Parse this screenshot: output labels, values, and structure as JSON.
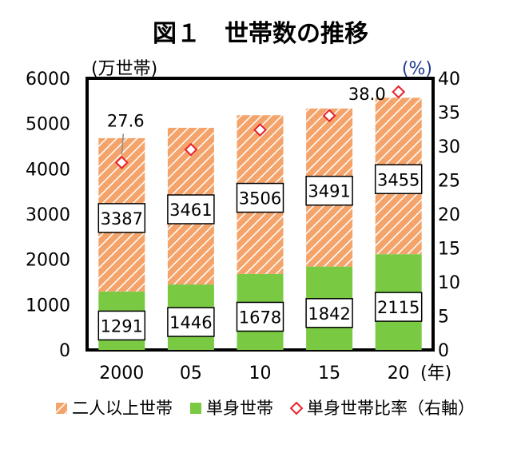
{
  "chart_data": {
    "type": "bar",
    "title": "図１　世帯数の推移",
    "categories": [
      "2000",
      "05",
      "10",
      "15",
      "20"
    ],
    "x_unit": "(年)",
    "y_left_unit": "(万世帯)",
    "y_right_unit": "(%)",
    "ylim": [
      0,
      6000
    ],
    "y_ticks": [
      0,
      1000,
      2000,
      3000,
      4000,
      5000,
      6000
    ],
    "y_right_lim": [
      0,
      40
    ],
    "y_right_ticks": [
      0,
      5,
      10,
      15,
      20,
      25,
      30,
      35,
      40
    ],
    "series": [
      {
        "name": "単身世帯",
        "values": [
          1291,
          1446,
          1678,
          1842,
          2115
        ],
        "color": "#7ac943",
        "axis": "left"
      },
      {
        "name": "二人以上世帯",
        "values": [
          3387,
          3461,
          3506,
          3491,
          3455
        ],
        "color": "#f4a46b",
        "pattern": "diagonal-hatch",
        "axis": "left"
      },
      {
        "name": "単身世帯比率（右軸）",
        "values": [
          27.6,
          29.5,
          32.4,
          34.5,
          38.0
        ],
        "color": "#e8212a",
        "marker": "diamond-open",
        "axis": "right"
      }
    ],
    "ratio_labels": [
      {
        "category": "2000",
        "text": "27.6"
      },
      {
        "category": "20",
        "text": "38.0"
      }
    ],
    "legend": [
      {
        "label": "二人以上世帯",
        "icon": "hatched-square"
      },
      {
        "label": "単身世帯",
        "icon": "green-square"
      },
      {
        "label": "単身世帯比率（右軸）",
        "icon": "red-diamond-icon"
      }
    ],
    "grid": false,
    "legend_position": "bottom"
  }
}
